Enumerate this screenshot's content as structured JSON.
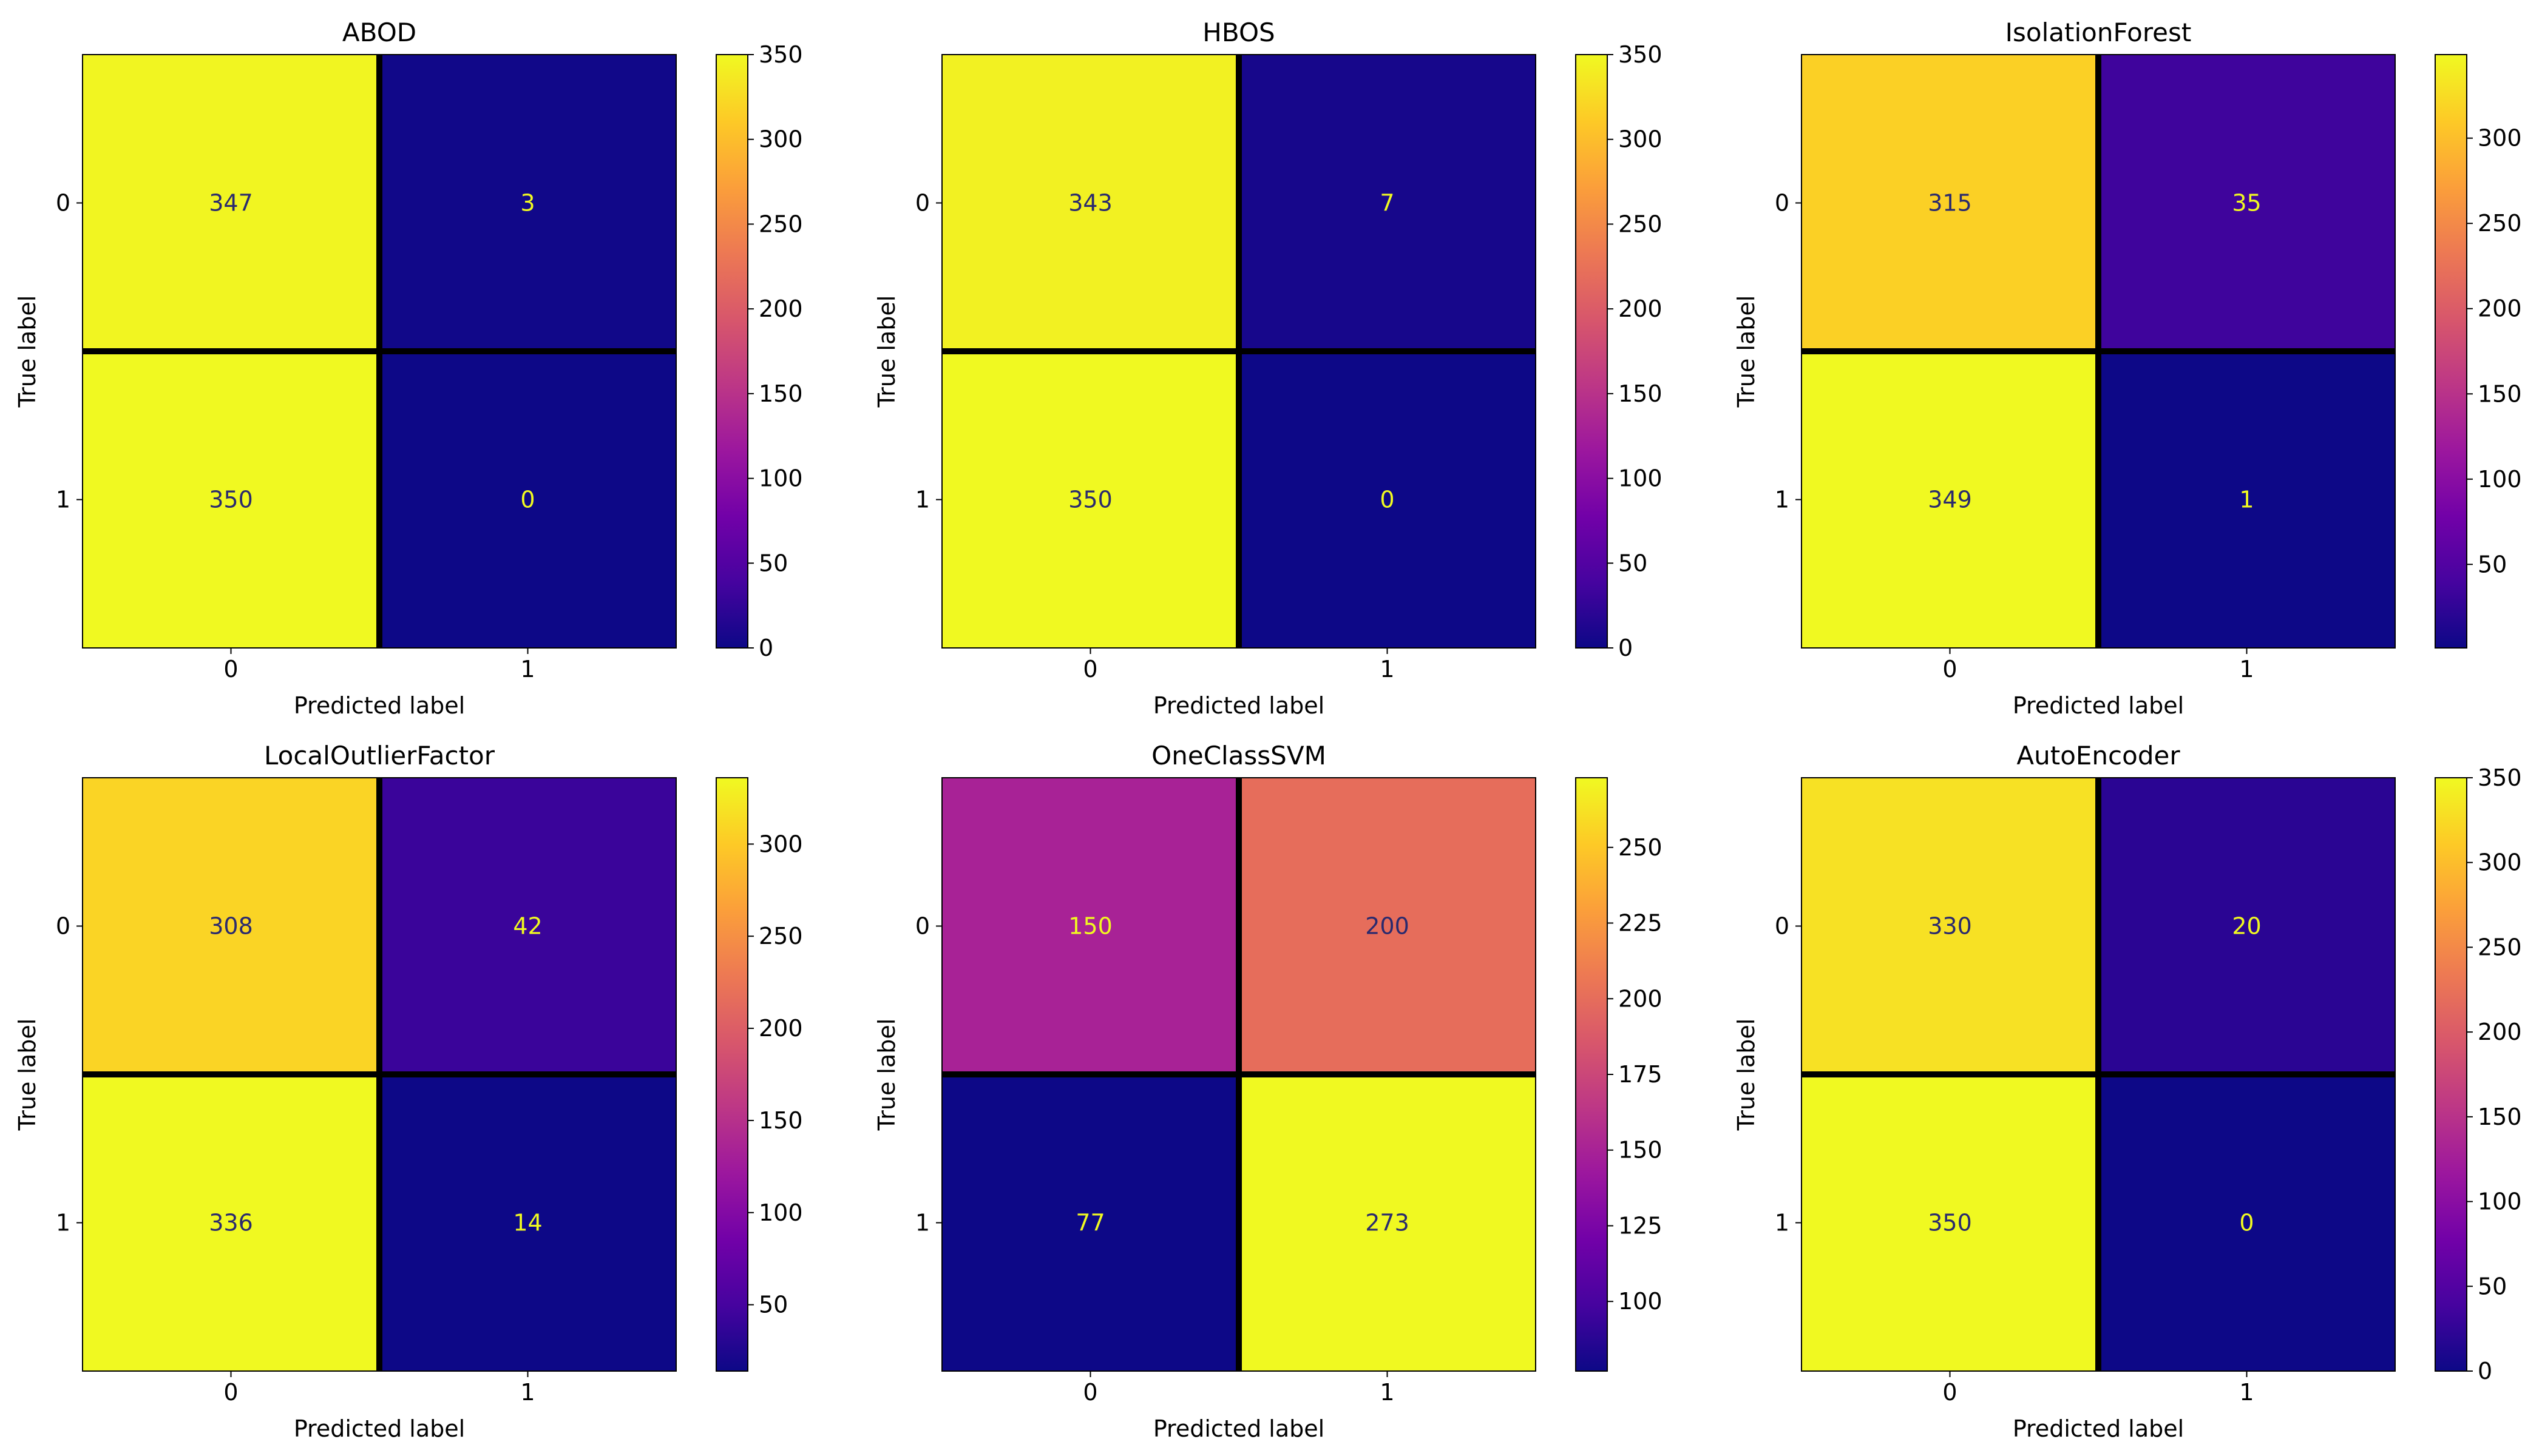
{
  "figure": {
    "colormap": "plasma",
    "colormap_stops": [
      "#0d0887",
      "#46039f",
      "#7201a8",
      "#9c179e",
      "#bd3786",
      "#d8576b",
      "#ed7953",
      "#fb9f3a",
      "#fdca26",
      "#f0f921"
    ],
    "cell_text_dark": "#2a2a6e",
    "cell_text_light": "#f0f921"
  },
  "chart_data": [
    {
      "type": "heatmap",
      "title": "ABOD",
      "xlabel": "Predicted label",
      "ylabel": "True label",
      "x_tick_labels": [
        "0",
        "1"
      ],
      "y_tick_labels": [
        "0",
        "1"
      ],
      "matrix": [
        [
          347,
          3
        ],
        [
          350,
          0
        ]
      ],
      "colorbar": {
        "vmin": 0,
        "vmax": 350,
        "ticks": [
          0,
          50,
          100,
          150,
          200,
          250,
          300,
          350
        ]
      }
    },
    {
      "type": "heatmap",
      "title": "HBOS",
      "xlabel": "Predicted label",
      "ylabel": "True label",
      "x_tick_labels": [
        "0",
        "1"
      ],
      "y_tick_labels": [
        "0",
        "1"
      ],
      "matrix": [
        [
          343,
          7
        ],
        [
          350,
          0
        ]
      ],
      "colorbar": {
        "vmin": 0,
        "vmax": 350,
        "ticks": [
          0,
          50,
          100,
          150,
          200,
          250,
          300,
          350
        ]
      }
    },
    {
      "type": "heatmap",
      "title": "IsolationForest",
      "xlabel": "Predicted label",
      "ylabel": "True label",
      "x_tick_labels": [
        "0",
        "1"
      ],
      "y_tick_labels": [
        "0",
        "1"
      ],
      "matrix": [
        [
          315,
          35
        ],
        [
          349,
          1
        ]
      ],
      "colorbar": {
        "vmin": 1,
        "vmax": 349,
        "ticks": [
          50,
          100,
          150,
          200,
          250,
          300
        ]
      }
    },
    {
      "type": "heatmap",
      "title": "LocalOutlierFactor",
      "xlabel": "Predicted label",
      "ylabel": "True label",
      "x_tick_labels": [
        "0",
        "1"
      ],
      "y_tick_labels": [
        "0",
        "1"
      ],
      "matrix": [
        [
          308,
          42
        ],
        [
          336,
          14
        ]
      ],
      "colorbar": {
        "vmin": 14,
        "vmax": 336,
        "ticks": [
          50,
          100,
          150,
          200,
          250,
          300
        ]
      }
    },
    {
      "type": "heatmap",
      "title": "OneClassSVM",
      "xlabel": "Predicted label",
      "ylabel": "True label",
      "x_tick_labels": [
        "0",
        "1"
      ],
      "y_tick_labels": [
        "0",
        "1"
      ],
      "matrix": [
        [
          150,
          200
        ],
        [
          77,
          273
        ]
      ],
      "colorbar": {
        "vmin": 77,
        "vmax": 273,
        "ticks": [
          100,
          125,
          150,
          175,
          200,
          225,
          250
        ]
      }
    },
    {
      "type": "heatmap",
      "title": "AutoEncoder",
      "xlabel": "Predicted label",
      "ylabel": "True label",
      "x_tick_labels": [
        "0",
        "1"
      ],
      "y_tick_labels": [
        "0",
        "1"
      ],
      "matrix": [
        [
          330,
          20
        ],
        [
          350,
          0
        ]
      ],
      "colorbar": {
        "vmin": 0,
        "vmax": 350,
        "ticks": [
          0,
          50,
          100,
          150,
          200,
          250,
          300,
          350
        ]
      }
    }
  ]
}
